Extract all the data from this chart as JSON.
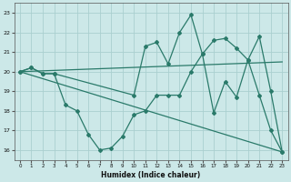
{
  "xlabel": "Humidex (Indice chaleur)",
  "bg_color": "#cce8e8",
  "grid_color": "#aacfcf",
  "line_color": "#2a7a6a",
  "xlim": [
    -0.5,
    23.5
  ],
  "ylim": [
    15.5,
    23.5
  ],
  "yticks": [
    16,
    17,
    18,
    19,
    20,
    21,
    22,
    23
  ],
  "xticks": [
    0,
    1,
    2,
    3,
    4,
    5,
    6,
    7,
    8,
    9,
    10,
    11,
    12,
    13,
    14,
    15,
    16,
    17,
    18,
    19,
    20,
    21,
    22,
    23
  ],
  "line1_x": [
    0,
    1,
    2,
    3,
    4,
    5,
    6,
    7,
    8,
    9,
    10,
    11,
    12,
    13,
    14,
    15,
    16,
    17,
    18,
    19,
    20,
    21,
    22,
    23
  ],
  "line1_y": [
    20.0,
    20.2,
    19.9,
    19.9,
    18.3,
    18.0,
    16.8,
    16.0,
    16.1,
    16.7,
    17.8,
    18.0,
    18.8,
    18.8,
    18.8,
    20.0,
    20.9,
    17.9,
    19.5,
    18.7,
    20.6,
    18.8,
    17.0,
    15.9
  ],
  "line2_x": [
    0,
    1,
    2,
    3,
    10,
    11,
    12,
    13,
    14,
    15,
    16,
    17,
    18,
    19,
    20,
    21,
    22,
    23
  ],
  "line2_y": [
    20.0,
    20.2,
    19.9,
    19.9,
    18.8,
    21.3,
    21.5,
    20.4,
    22.0,
    22.9,
    20.9,
    21.6,
    21.7,
    21.2,
    20.6,
    21.8,
    19.0,
    15.9
  ],
  "line3_x": [
    0,
    23
  ],
  "line3_y": [
    20.0,
    20.5
  ],
  "line4_x": [
    0,
    23
  ],
  "line4_y": [
    20.0,
    15.9
  ]
}
